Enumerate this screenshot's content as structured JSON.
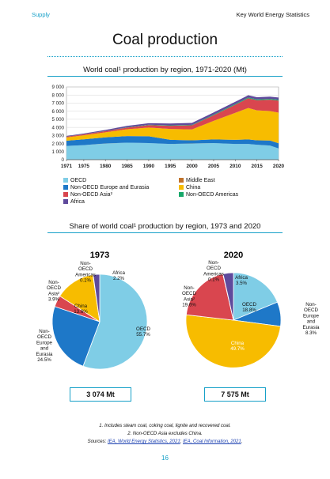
{
  "header": {
    "section": "Supply",
    "publication": "Key World Energy Statistics"
  },
  "page_title": "Coal production",
  "page_number": "16",
  "colors": {
    "accent": "#16a0c8"
  },
  "chart_data": [
    {
      "type": "area",
      "title": "World coal¹ production by region, 1971-2020 (Mt)",
      "ylim": [
        0,
        9000
      ],
      "y_ticks": [
        "0",
        "1 000",
        "2 000",
        "3 000",
        "4 000",
        "5 000",
        "6 000",
        "7 000",
        "8 000",
        "9 000"
      ],
      "x_ticks": [
        "1971",
        "1975",
        "1980",
        "1985",
        "1990",
        "1995",
        "2000",
        "2005",
        "2010",
        "2015",
        "2020"
      ],
      "x": [
        1971,
        1975,
        1980,
        1985,
        1990,
        1995,
        2000,
        2005,
        2010,
        2013,
        2015,
        2018,
        2020
      ],
      "legend_position": "bottom",
      "series": [
        {
          "name": "OECD",
          "color": "#7fcde6",
          "values": [
            1700,
            1800,
            2000,
            2100,
            2050,
            1950,
            2000,
            2050,
            1950,
            1950,
            1850,
            1750,
            1400
          ]
        },
        {
          "name": "Middle East",
          "color": "#c0722b",
          "values": [
            1,
            1,
            1,
            1,
            1,
            1,
            1,
            1,
            1,
            1,
            1,
            1,
            1
          ]
        },
        {
          "name": "Non-OECD Europe and Eurasia",
          "color": "#1e78c8",
          "values": [
            650,
            720,
            760,
            820,
            840,
            500,
            400,
            450,
            500,
            550,
            550,
            620,
            620
          ]
        },
        {
          "name": "China",
          "color": "#f7bc00",
          "values": [
            400,
            500,
            620,
            850,
            1080,
            1350,
            1350,
            2300,
            3350,
            3900,
            3700,
            3650,
            3800
          ]
        },
        {
          "name": "Non-OECD Asia²",
          "color": "#d9464f",
          "values": [
            100,
            120,
            150,
            200,
            300,
            400,
            500,
            700,
            1000,
            1200,
            1250,
            1400,
            1500
          ]
        },
        {
          "name": "Non-OECD Americas",
          "color": "#17a86a",
          "values": [
            10,
            15,
            20,
            35,
            50,
            55,
            65,
            85,
            100,
            110,
            110,
            110,
            100
          ]
        },
        {
          "name": "Africa",
          "color": "#5f4a9c",
          "values": [
            70,
            85,
            130,
            180,
            190,
            210,
            230,
            250,
            260,
            265,
            265,
            270,
            270
          ]
        }
      ]
    },
    {
      "type": "pie",
      "title": "Share of world coal¹ production by region, 1973 and 2020",
      "year": "1973",
      "total": "3 074 Mt",
      "slices": [
        {
          "name": "OECD",
          "value": 55.7,
          "value_label": "55.7%",
          "color": "#7fcde6"
        },
        {
          "name": "Non-OECD Europe and Eurasia",
          "value": 24.5,
          "value_label": "24.5%",
          "color": "#1e78c8"
        },
        {
          "name": "Non-OECD Asia²",
          "value": 3.9,
          "value_label": "3.9%",
          "color": "#d9464f"
        },
        {
          "name": "China",
          "value": 13.6,
          "value_label": "13.6%",
          "color": "#f7bc00"
        },
        {
          "name": "Non-OECD Americas",
          "value": 0.1,
          "value_label": "0.1%",
          "color": "#17a86a"
        },
        {
          "name": "Africa",
          "value": 2.2,
          "value_label": "2.2%",
          "color": "#5f4a9c"
        }
      ]
    },
    {
      "type": "pie",
      "year": "2020",
      "total": "7 575 Mt",
      "slices": [
        {
          "name": "OECD",
          "value": 18.8,
          "value_label": "18.8%",
          "color": "#7fcde6"
        },
        {
          "name": "Non-OECD Europe and Eurasia",
          "value": 8.3,
          "value_label": "8.3%",
          "color": "#1e78c8"
        },
        {
          "name": "China",
          "value": 49.7,
          "value_label": "49.7%",
          "color": "#f7bc00"
        },
        {
          "name": "Non-OECD Asia²",
          "value": 19.6,
          "value_label": "19.6%",
          "color": "#d9464f"
        },
        {
          "name": "Non-OECD Americas",
          "value": 0.1,
          "value_label": "0.1%",
          "color": "#17a86a"
        },
        {
          "name": "Africa",
          "value": 3.5,
          "value_label": "3.5%",
          "color": "#5f4a9c"
        }
      ]
    }
  ],
  "legend": [
    {
      "label": "OECD",
      "color": "#7fcde6"
    },
    {
      "label": "Middle East",
      "color": "#c0722b"
    },
    {
      "label": "Non-OECD Europe and Eurasia",
      "color": "#1e78c8"
    },
    {
      "label": "China",
      "color": "#f7bc00"
    },
    {
      "label": "Non-OECD Asia²",
      "color": "#d9464f"
    },
    {
      "label": "Non-OECD Americas",
      "color": "#17a86a"
    },
    {
      "label": "Africa",
      "color": "#5f4a9c"
    }
  ],
  "pie_labels": {
    "p1973": {
      "oecd": [
        "OECD",
        "55.7%"
      ],
      "europe": [
        "Non-",
        "OECD",
        "Europe",
        "and",
        "Eurasia",
        "24.5%"
      ],
      "asia": [
        "Non-",
        "OECD",
        "Asia²",
        "3.9%"
      ],
      "china": [
        "China",
        "13.6%"
      ],
      "americas": [
        "Non-",
        "OECD",
        "Americas",
        "0.1%"
      ],
      "africa": [
        "Africa",
        "2.2%"
      ]
    },
    "p2020": {
      "oecd": [
        "OECD",
        "18.8%"
      ],
      "europe": [
        "Non-",
        "OECD",
        "Europe",
        "and",
        "Eurasia",
        "8.3%"
      ],
      "asia": [
        "Non-",
        "OECD",
        "Asia²",
        "19.6%"
      ],
      "china": [
        "China",
        "49.7%"
      ],
      "americas": [
        "Non-",
        "OECD",
        "Americas",
        "0.1%"
      ],
      "africa": [
        "Africa",
        "3.5%"
      ]
    }
  },
  "footnotes": {
    "note1": "1. Includes steam coal, coking coal, lignite and recovered coal.",
    "note2": "2. Non-OECD Asia excludes China.",
    "sources_label": "Sources: ",
    "source1": "IEA, World Energy Statistics, 2021",
    "separator": "; ",
    "source2": "IEA, Coal Information, 2021",
    "end": "."
  }
}
